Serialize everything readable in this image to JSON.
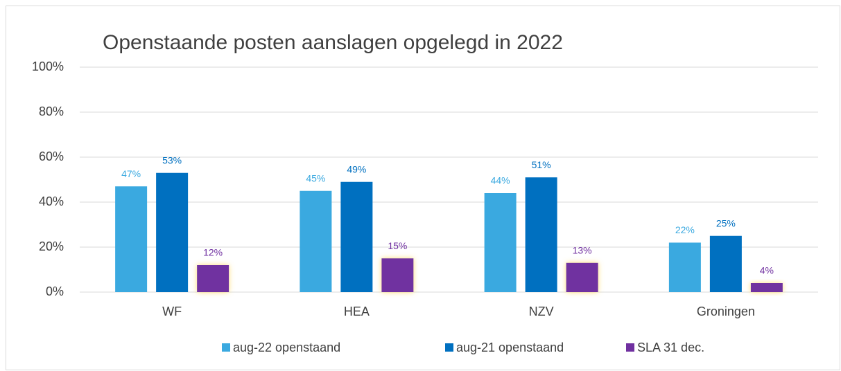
{
  "chart_data": {
    "type": "bar",
    "title": "Openstaande posten aanslagen opgelegd in 2022",
    "categories": [
      "WF",
      "HEA",
      "NZV",
      "Groningen"
    ],
    "series": [
      {
        "name": "aug-22 openstaand",
        "color": "#3aa9e0",
        "values": [
          47,
          45,
          44,
          22
        ],
        "value_labels": [
          "47%",
          "45%",
          "44%",
          "22%"
        ]
      },
      {
        "name": "aug-21 openstaand",
        "color": "#0070c0",
        "values": [
          53,
          49,
          51,
          25
        ],
        "value_labels": [
          "53%",
          "49%",
          "51%",
          "25%"
        ]
      },
      {
        "name": "SLA 31 dec.",
        "color": "#7030a0",
        "values": [
          12,
          15,
          13,
          4
        ],
        "value_labels": [
          "12%",
          "15%",
          "13%",
          "4%"
        ]
      }
    ],
    "ylim": [
      0,
      100
    ],
    "yticks": [
      {
        "value": 0,
        "label": "0%"
      },
      {
        "value": 20,
        "label": "20%"
      },
      {
        "value": 40,
        "label": "40%"
      },
      {
        "value": 60,
        "label": "60%"
      },
      {
        "value": 80,
        "label": "80%"
      },
      {
        "value": 100,
        "label": "100%"
      }
    ],
    "grid": true,
    "legend": "bottom"
  }
}
